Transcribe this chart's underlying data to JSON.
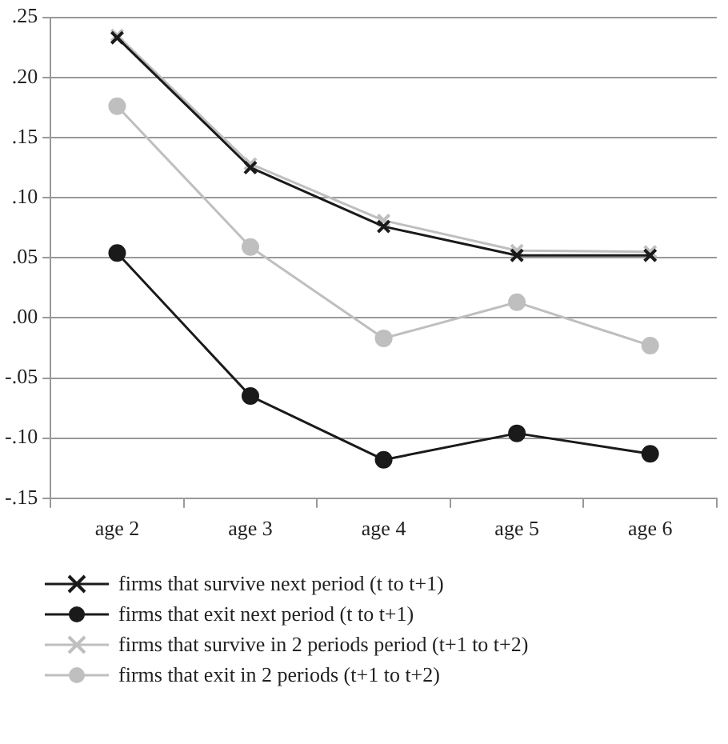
{
  "chart_data": {
    "type": "line",
    "categories": [
      "age 2",
      "age 3",
      "age 4",
      "age 5",
      "age 6"
    ],
    "series": [
      {
        "name": "firms that survive next period (t to t+1)",
        "color": "#1a1a1a",
        "marker": "cross",
        "values": [
          0.233,
          0.125,
          0.076,
          0.052,
          0.052
        ]
      },
      {
        "name": "firms that exit next period (t to t+1)",
        "color": "#1a1a1a",
        "marker": "circle",
        "values": [
          0.054,
          -0.065,
          -0.118,
          -0.096,
          -0.113
        ]
      },
      {
        "name": "firms that survive in 2 periods period (t+1 to t+2)",
        "color": "#bfbfbf",
        "marker": "cross",
        "values": [
          0.235,
          0.128,
          0.081,
          0.056,
          0.055
        ]
      },
      {
        "name": "firms that exit in 2 periods (t+1 to t+2)",
        "color": "#bfbfbf",
        "marker": "circle",
        "values": [
          0.176,
          0.059,
          -0.017,
          0.013,
          -0.023
        ]
      }
    ],
    "ylim": [
      -0.15,
      0.25
    ],
    "yticks": [
      {
        "value": -0.15,
        "label": "-.15"
      },
      {
        "value": -0.1,
        "label": "-.10"
      },
      {
        "value": -0.05,
        "label": "-.05"
      },
      {
        "value": 0,
        "label": ".00"
      },
      {
        "value": 0.05,
        "label": ".05"
      },
      {
        "value": 0.1,
        "label": ".10"
      },
      {
        "value": 0.15,
        "label": ".15"
      },
      {
        "value": 0.2,
        "label": ".20"
      },
      {
        "value": 0.25,
        "label": ".25"
      }
    ],
    "grid": "y",
    "legend": "bottom",
    "line_style": "solid"
  }
}
